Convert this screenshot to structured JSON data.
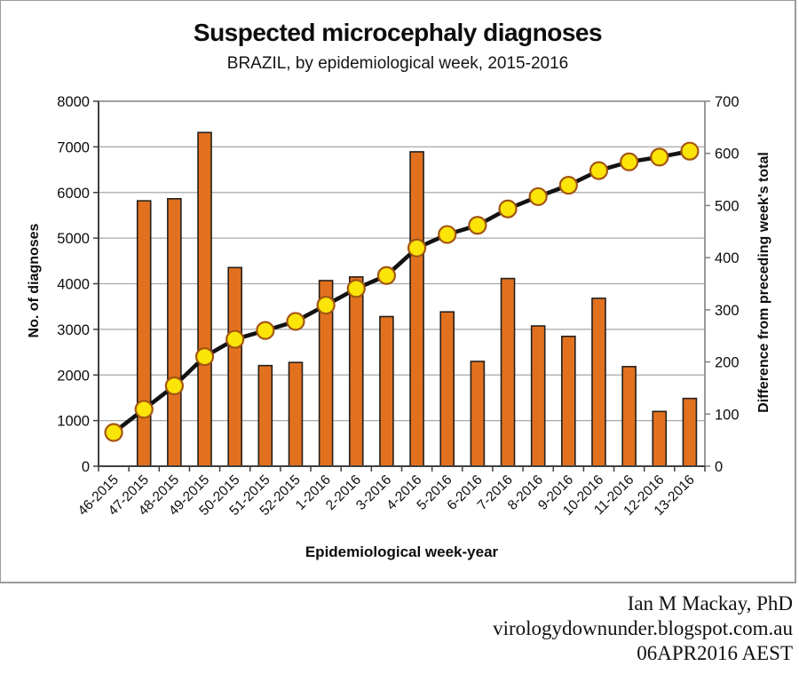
{
  "chart": {
    "title": "Suspected microcephaly diagnoses",
    "subtitle": "BRAZIL, by epidemiological week, 2015-2016",
    "x_axis_title": "Epidemiological week-year",
    "y_left_title": "No. of diagnoses",
    "y_right_title": "Difference from preceding week's total"
  },
  "chart_data": {
    "type": "bar",
    "subtype": "bar-line-combo",
    "categories": [
      "46-2015",
      "47-2015",
      "48-2015",
      "49-2015",
      "50-2015",
      "51-2015",
      "52-2015",
      "1-2016",
      "2-2016",
      "3-2016",
      "4-2016",
      "5-2016",
      "6-2016",
      "7-2016",
      "8-2016",
      "9-2016",
      "10-2016",
      "11-2016",
      "12-2016",
      "13-2016"
    ],
    "series": [
      {
        "name": "No. of diagnoses (cumulative)",
        "type": "line",
        "axis": "left",
        "values": [
          739,
          1248,
          1761,
          2401,
          2782,
          2975,
          3174,
          3530,
          3893,
          4180,
          4783,
          5079,
          5280,
          5640,
          5909,
          6158,
          6480,
          6671,
          6776,
          6906
        ]
      },
      {
        "name": "Difference from preceding week's total",
        "type": "bar",
        "axis": "right",
        "values": [
          null,
          509,
          513,
          640,
          381,
          193,
          199,
          356,
          363,
          287,
          603,
          296,
          201,
          360,
          269,
          249,
          322,
          191,
          105,
          130
        ]
      }
    ],
    "left_axis": {
      "label": "No. of diagnoses",
      "min": 0,
      "max": 8000,
      "step": 1000,
      "ticks": [
        8000,
        7000,
        6000,
        5000,
        4000,
        3000,
        2000,
        1000,
        0
      ]
    },
    "right_axis": {
      "label": "Difference from preceding week's total",
      "min": 0,
      "max": 700,
      "step": 100,
      "ticks": [
        700,
        600,
        500,
        400,
        300,
        200,
        100,
        0
      ]
    },
    "title": "Suspected microcephaly diagnoses",
    "subtitle": "BRAZIL, by epidemiological week, 2015-2016",
    "xlabel": "Epidemiological week-year",
    "grid": true,
    "legend_position": "none"
  },
  "colors": {
    "bar_fill": "#E2711F",
    "bar_stroke": "#241F1C",
    "line": "#121212",
    "marker_fill": "#FBE408",
    "marker_stroke": "#A35513",
    "gridline": "#A8A8A8",
    "axis_dark": "#3F3F3F",
    "border_gray": "#808080",
    "frame_border": "#9B9B9B",
    "text": "#0D0D0D"
  },
  "attribution": {
    "line1": "Ian M Mackay, PhD",
    "line2": "virologydownunder.blogspot.com.au",
    "line3": "06APR2016 AEST"
  }
}
